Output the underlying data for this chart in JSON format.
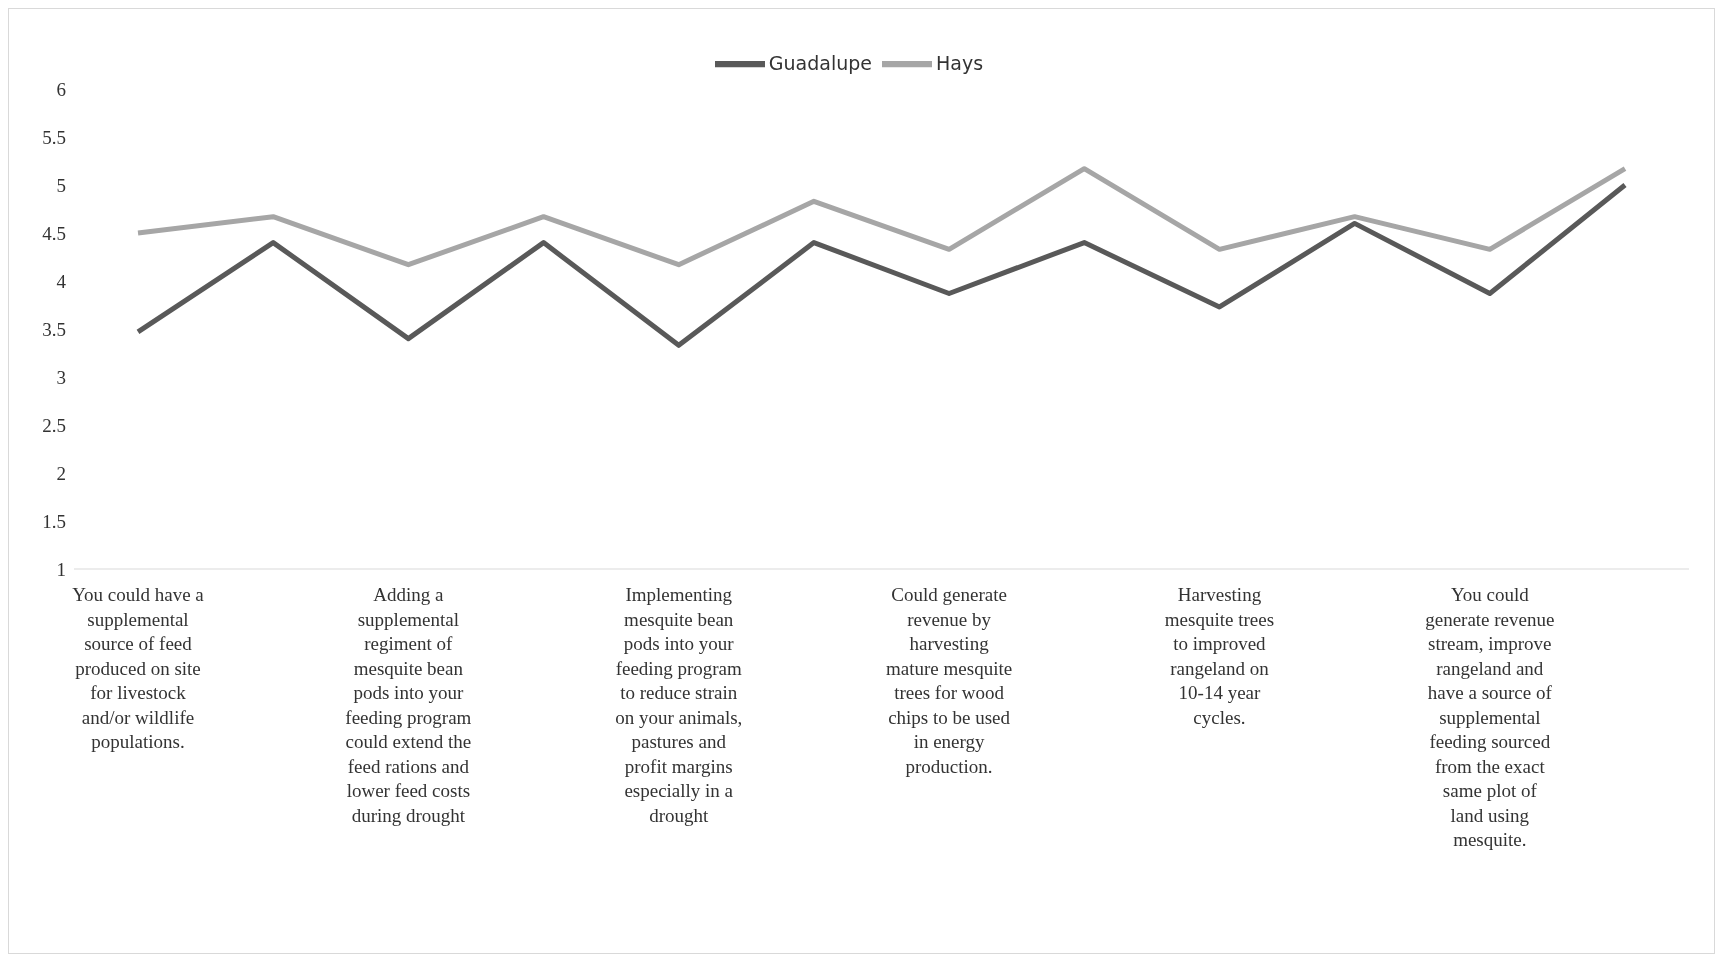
{
  "chart_data": {
    "type": "line",
    "categories": [
      "You could have a supplemental source of feed produced on site for livestock and/or wildlife populations.",
      null,
      "Adding a supplemental regiment of mesquite bean pods into your feeding program could extend the feed rations and lower feed costs during drought",
      null,
      "Implementing mesquite bean pods into your feeding program to reduce strain on your animals, pastures and profit margins especially in a drought",
      null,
      "Could generate revenue by harvesting mature mesquite trees for wood chips to be used in energy production.",
      null,
      "Harvesting mesquite trees to improved rangeland on 10-14 year cycles.",
      null,
      "You could generate revenue stream, improve rangeland and have a source of supplemental feeding sourced from the exact same plot of land using mesquite.",
      null
    ],
    "series": [
      {
        "name": "Guadalupe",
        "color": "#595959",
        "values": [
          3.47,
          4.4,
          3.4,
          4.4,
          3.33,
          4.4,
          3.87,
          4.4,
          3.73,
          4.6,
          3.87,
          5.0
        ]
      },
      {
        "name": "Hays",
        "color": "#a6a6a6",
        "values": [
          4.5,
          4.67,
          4.17,
          4.67,
          4.17,
          4.83,
          4.33,
          5.17,
          4.33,
          4.67,
          4.33,
          5.17
        ]
      }
    ],
    "ylim": [
      1,
      6
    ],
    "yticks": [
      1,
      1.5,
      2,
      2.5,
      3,
      3.5,
      4,
      4.5,
      5,
      5.5,
      6
    ],
    "legend": "top",
    "marker": "none",
    "line_style": "solid"
  }
}
